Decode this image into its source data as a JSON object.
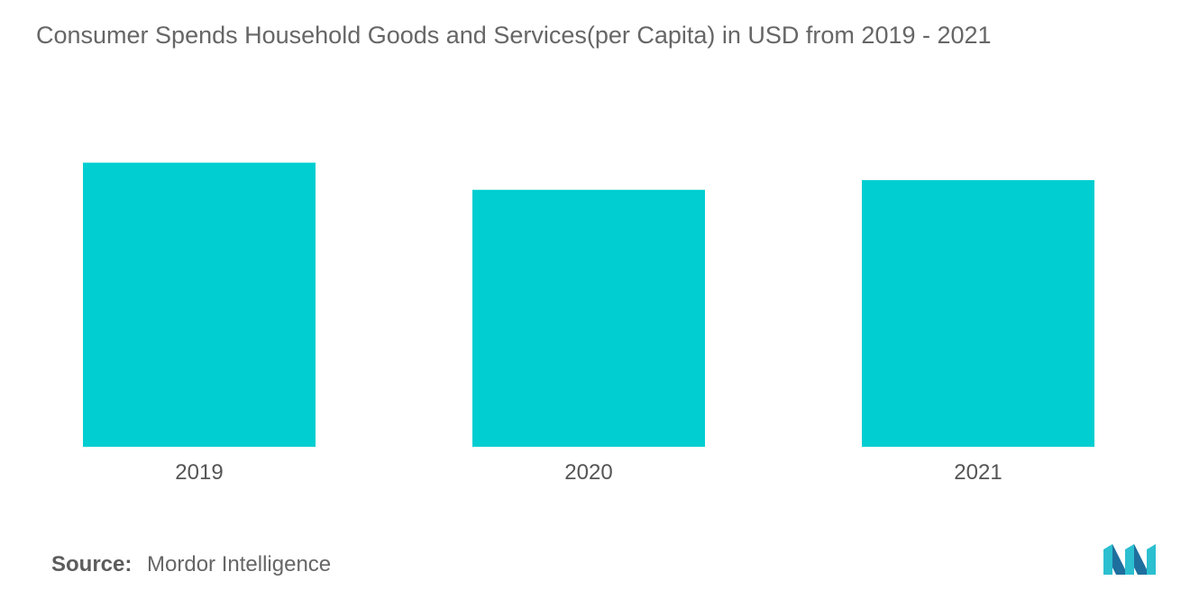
{
  "chart_data": {
    "type": "bar",
    "title": "Consumer Spends Household Goods and Services(per Capita) in USD from 2019 - 2021",
    "categories": [
      "2019",
      "2020",
      "2021"
    ],
    "values": [
      293,
      265,
      275
    ],
    "xlabel": "",
    "ylabel": "",
    "ylim": [
      0,
      340
    ],
    "grid": false,
    "bar_color": "#00CED1"
  },
  "source": {
    "label": "Source:",
    "value": "Mordor Intelligence"
  },
  "logo": {
    "icon": "mordor-intelligence-logo",
    "colors": [
      "#1f6f9e",
      "#2bbfd0"
    ]
  }
}
